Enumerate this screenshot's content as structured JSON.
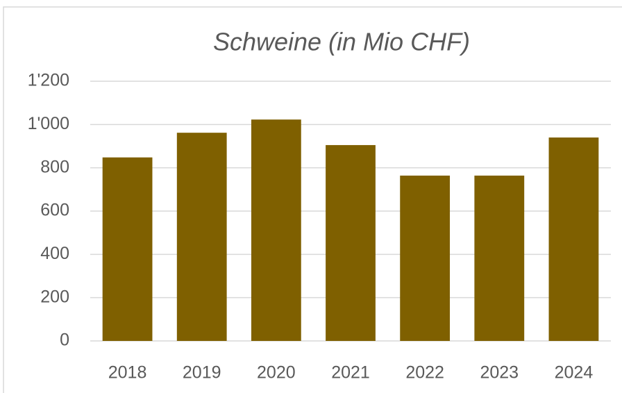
{
  "chart_data": {
    "type": "bar",
    "title": "Schweine (in Mio CHF)",
    "categories": [
      "2018",
      "2019",
      "2020",
      "2021",
      "2022",
      "2023",
      "2024"
    ],
    "values": [
      848,
      962,
      1023,
      905,
      764,
      764,
      940
    ],
    "color": "#7f6000",
    "ylim": [
      0,
      1200
    ],
    "yticks": [
      0,
      200,
      400,
      600,
      800,
      {
        "value": 1000,
        "label": "1'000"
      },
      {
        "value": 1200,
        "label": "1'200"
      }
    ],
    "grid": true
  }
}
